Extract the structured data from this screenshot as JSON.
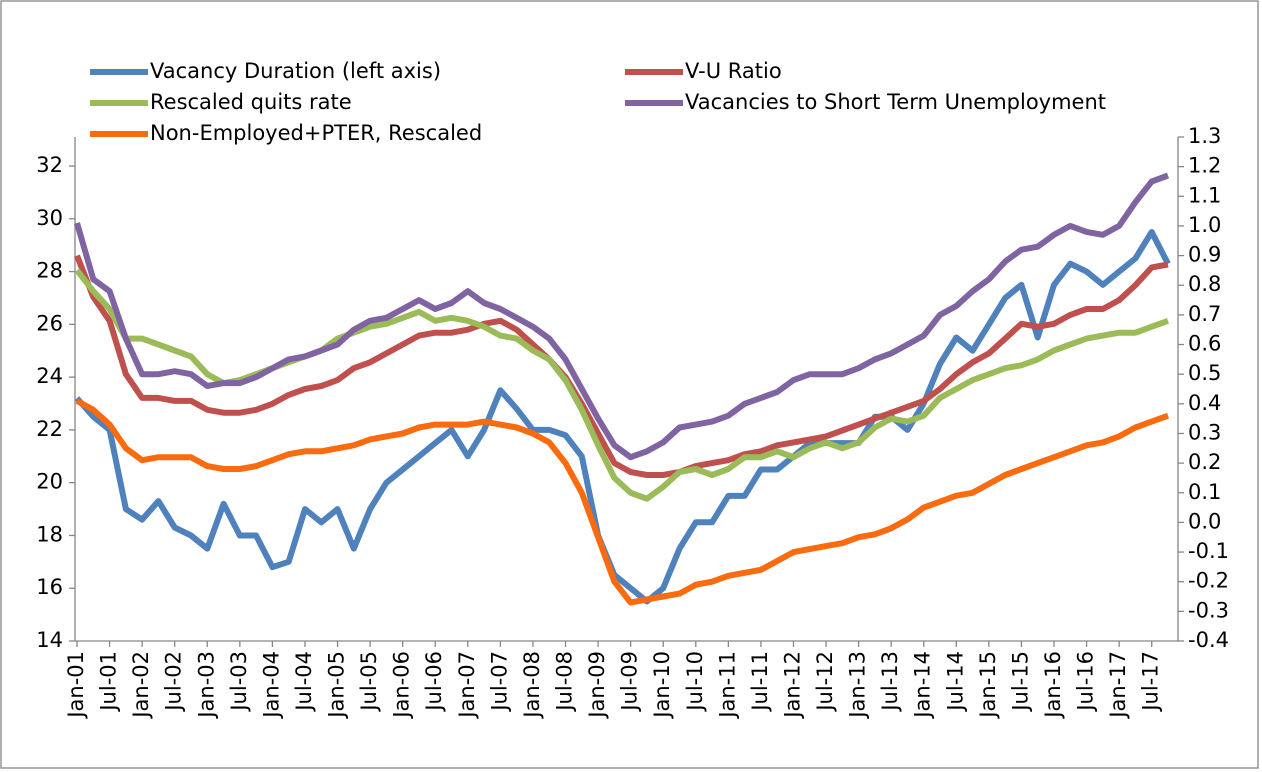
{
  "chart_data": {
    "type": "line",
    "categories": [
      "Jan-01",
      null,
      "Jul-01",
      null,
      "Jan-02",
      null,
      "Jul-02",
      null,
      "Jan-03",
      null,
      "Jul-03",
      null,
      "Jan-04",
      null,
      "Jul-04",
      null,
      "Jan-05",
      null,
      "Jul-05",
      null,
      "Jan-06",
      null,
      "Jul-06",
      null,
      "Jan-07",
      null,
      "Jul-07",
      null,
      "Jan-08",
      null,
      "Jul-08",
      null,
      "Jan-09",
      null,
      "Jul-09",
      null,
      "Jan-10",
      null,
      "Jul-10",
      null,
      "Jan-11",
      null,
      "Jul-11",
      null,
      "Jan-12",
      null,
      "Jul-12",
      null,
      "Jan-13",
      null,
      "Jul-13",
      null,
      "Jan-14",
      null,
      "Jul-14",
      null,
      "Jan-15",
      null,
      "Jul-15",
      null,
      "Jan-16",
      null,
      "Jul-16",
      null,
      "Jan-17",
      null,
      "Jul-17",
      null
    ],
    "series": [
      {
        "name": "Vacancy Duration (left axis)",
        "color": "#4f81bd",
        "axis": "y",
        "values": [
          23.2,
          22.5,
          22.0,
          19.0,
          18.6,
          19.3,
          18.3,
          18.0,
          17.5,
          19.2,
          18.0,
          18.0,
          16.8,
          17.0,
          19.0,
          18.5,
          19.0,
          17.5,
          19.0,
          20.0,
          20.5,
          21.0,
          21.5,
          22.0,
          21.0,
          22.0,
          23.5,
          22.8,
          22.0,
          22.0,
          21.8,
          21.0,
          18.0,
          16.5,
          16.0,
          15.5,
          16.0,
          17.5,
          18.5,
          18.5,
          19.5,
          19.5,
          20.5,
          20.5,
          21.0,
          21.5,
          21.5,
          21.5,
          21.5,
          22.5,
          22.5,
          22.0,
          23.0,
          24.5,
          25.5,
          25.0,
          26.0,
          27.0,
          27.5,
          25.5,
          27.5,
          28.3,
          28.0,
          27.5,
          28.0,
          28.5,
          29.5,
          28.3
        ]
      },
      {
        "name": "V-U Ratio",
        "color": "#c0504d",
        "axis": "y2",
        "values": [
          0.9,
          0.76,
          0.68,
          0.5,
          0.42,
          0.42,
          0.41,
          0.41,
          0.38,
          0.37,
          0.37,
          0.38,
          0.4,
          0.43,
          0.45,
          0.46,
          0.48,
          0.52,
          0.54,
          0.57,
          0.6,
          0.63,
          0.64,
          0.64,
          0.65,
          0.67,
          0.68,
          0.65,
          0.6,
          0.55,
          0.49,
          0.4,
          0.3,
          0.2,
          0.17,
          0.16,
          0.16,
          0.17,
          0.19,
          0.2,
          0.21,
          0.23,
          0.24,
          0.26,
          0.27,
          0.28,
          0.29,
          0.31,
          0.33,
          0.35,
          0.37,
          0.39,
          0.41,
          0.45,
          0.5,
          0.54,
          0.57,
          0.62,
          0.67,
          0.66,
          0.67,
          0.7,
          0.72,
          0.72,
          0.75,
          0.8,
          0.86,
          0.87
        ]
      },
      {
        "name": "Rescaled quits rate",
        "color": "#9bbb59",
        "axis": "y2",
        "values": [
          0.85,
          0.78,
          0.72,
          0.62,
          0.62,
          0.6,
          0.58,
          0.56,
          0.5,
          0.47,
          0.48,
          0.5,
          0.52,
          0.54,
          0.56,
          0.58,
          0.62,
          0.64,
          0.66,
          0.67,
          0.69,
          0.71,
          0.68,
          0.69,
          0.68,
          0.66,
          0.63,
          0.62,
          0.58,
          0.55,
          0.48,
          0.38,
          0.26,
          0.15,
          0.1,
          0.08,
          0.12,
          0.17,
          0.18,
          0.16,
          0.18,
          0.22,
          0.22,
          0.24,
          0.22,
          0.25,
          0.27,
          0.25,
          0.27,
          0.32,
          0.35,
          0.34,
          0.36,
          0.42,
          0.45,
          0.48,
          0.5,
          0.52,
          0.53,
          0.55,
          0.58,
          0.6,
          0.62,
          0.63,
          0.64,
          0.64,
          0.66,
          0.68
        ]
      },
      {
        "name": "Vacancies to Short Term Unemployment",
        "color": "#8064a2",
        "axis": "y2",
        "values": [
          1.01,
          0.82,
          0.78,
          0.62,
          0.5,
          0.5,
          0.51,
          0.5,
          0.46,
          0.47,
          0.47,
          0.49,
          0.52,
          0.55,
          0.56,
          0.58,
          0.6,
          0.65,
          0.68,
          0.69,
          0.72,
          0.75,
          0.72,
          0.74,
          0.78,
          0.74,
          0.72,
          0.69,
          0.66,
          0.62,
          0.55,
          0.45,
          0.35,
          0.26,
          0.22,
          0.24,
          0.27,
          0.32,
          0.33,
          0.34,
          0.36,
          0.4,
          0.42,
          0.44,
          0.48,
          0.5,
          0.5,
          0.5,
          0.52,
          0.55,
          0.57,
          0.6,
          0.63,
          0.7,
          0.73,
          0.78,
          0.82,
          0.88,
          0.92,
          0.93,
          0.97,
          1.0,
          0.98,
          0.97,
          1.0,
          1.08,
          1.15,
          1.17
        ]
      },
      {
        "name": "Non-Employed+PTER, Rescaled",
        "color": "#f96b0e",
        "axis": "y2",
        "values": [
          0.41,
          0.38,
          0.33,
          0.25,
          0.21,
          0.22,
          0.22,
          0.22,
          0.19,
          0.18,
          0.18,
          0.19,
          0.21,
          0.23,
          0.24,
          0.24,
          0.25,
          0.26,
          0.28,
          0.29,
          0.3,
          0.32,
          0.33,
          0.33,
          0.33,
          0.34,
          0.33,
          0.32,
          0.3,
          0.27,
          0.2,
          0.1,
          -0.05,
          -0.2,
          -0.27,
          -0.26,
          -0.25,
          -0.24,
          -0.21,
          -0.2,
          -0.18,
          -0.17,
          -0.16,
          -0.13,
          -0.1,
          -0.09,
          -0.08,
          -0.07,
          -0.05,
          -0.04,
          -0.02,
          0.01,
          0.05,
          0.07,
          0.09,
          0.1,
          0.13,
          0.16,
          0.18,
          0.2,
          0.22,
          0.24,
          0.26,
          0.27,
          0.29,
          0.32,
          0.34,
          0.36
        ]
      }
    ],
    "ylim": [
      14,
      33.1
    ],
    "yticks": [
      14,
      16,
      18,
      20,
      22,
      24,
      26,
      28,
      30,
      32
    ],
    "y2lim": [
      -0.4,
      1.3
    ],
    "y2ticks": [
      -0.4,
      -0.3,
      -0.2,
      -0.1,
      {
        "value": 0,
        "label": "0.0"
      },
      0.1,
      0.2,
      0.3,
      0.4,
      0.5,
      0.6,
      0.7,
      0.8,
      0.9,
      {
        "value": 1,
        "label": "1.0"
      },
      1.1,
      1.2,
      1.3
    ],
    "grid": false,
    "legend": "top"
  }
}
